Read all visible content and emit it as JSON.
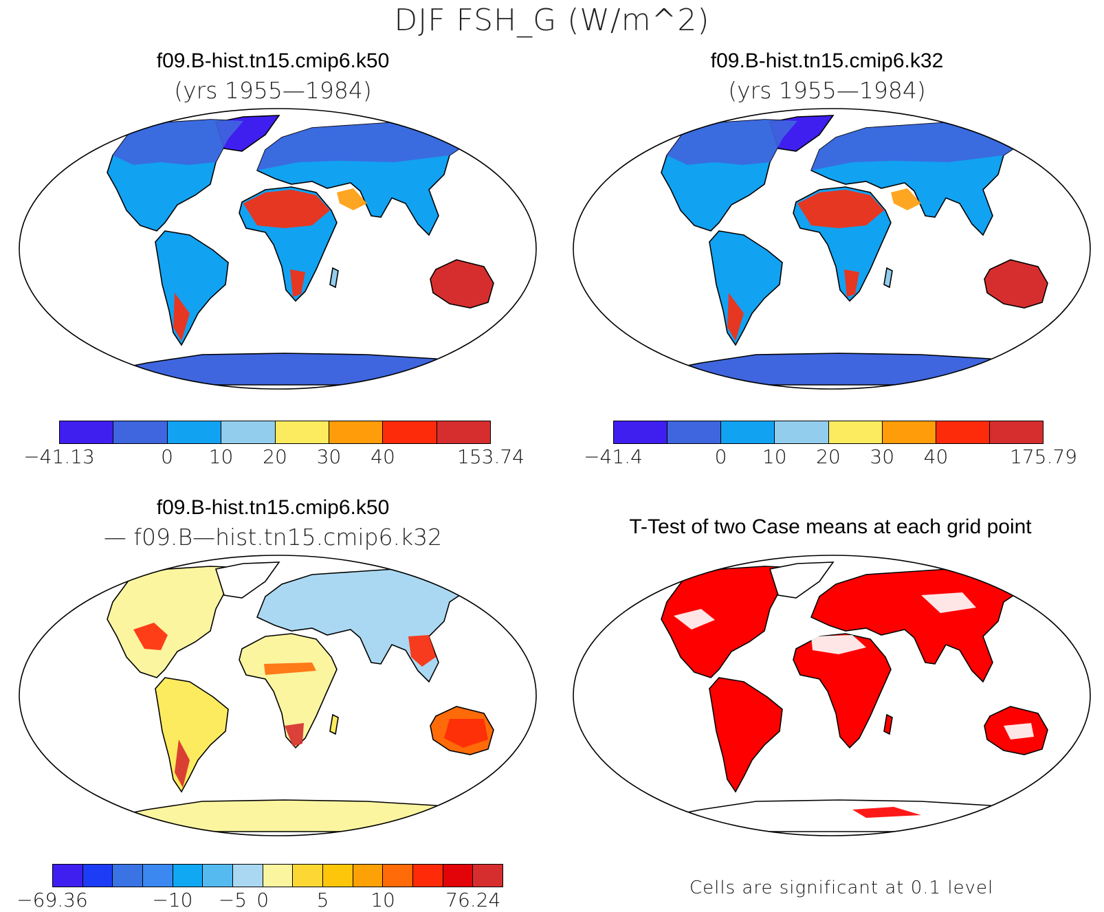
{
  "title": "DJF FSH_G (W/m^2)",
  "panels": [
    {
      "title": "f09.B-hist.tn15.cmip6.k50",
      "subtitle": "(yrs 1955—1984)"
    },
    {
      "title": "f09.B-hist.tn15.cmip6.k32",
      "subtitle": "(yrs 1955—1984)"
    },
    {
      "title": "f09.B-hist.tn15.cmip6.k50",
      "subtitle": "— f09.B—hist.tn15.cmip6.k32"
    },
    {
      "title": "T-Test of two Case means at each grid point",
      "subtitle": ""
    }
  ],
  "colorbars": [
    {
      "colors": [
        "#3f1ff0",
        "#3f66de",
        "#12a2f2",
        "#92cdee",
        "#fdeb5f",
        "#fe9c0a",
        "#fe2b0b",
        "#d62e2e"
      ],
      "labels": [
        "−41.13",
        "0",
        "10",
        "20",
        "30",
        "40",
        "153.74"
      ],
      "label_edges": [
        0,
        2,
        3,
        4,
        5,
        6,
        8
      ]
    },
    {
      "colors": [
        "#3f1ff0",
        "#3f66de",
        "#12a2f2",
        "#92cdee",
        "#fdeb5f",
        "#fe9c0a",
        "#fe2b0b",
        "#d62e2e"
      ],
      "labels": [
        "−41.4",
        "0",
        "10",
        "20",
        "30",
        "40",
        "175.79"
      ],
      "label_edges": [
        0,
        2,
        3,
        4,
        5,
        6,
        8
      ]
    },
    {
      "colors": [
        "#3f1ff0",
        "#1c3cf5",
        "#3a73e3",
        "#3a88f0",
        "#10a8f2",
        "#54baf0",
        "#aad8f2",
        "#fbf5a0",
        "#fdd835",
        "#fec60a",
        "#fea107",
        "#fe6b08",
        "#fe2a08",
        "#e20408",
        "#d62e2e"
      ],
      "labels": [
        "−69.36",
        "−10",
        "−5",
        "0",
        "5",
        "10",
        "76.24"
      ],
      "label_edges": [
        0,
        4,
        6,
        7,
        9,
        11,
        14
      ]
    }
  ],
  "significance_note": "Cells are significant at 0.1 level",
  "map_colors": {
    "ocean": "#ffffff",
    "coast": "#000000",
    "significant": "#fe0000"
  }
}
